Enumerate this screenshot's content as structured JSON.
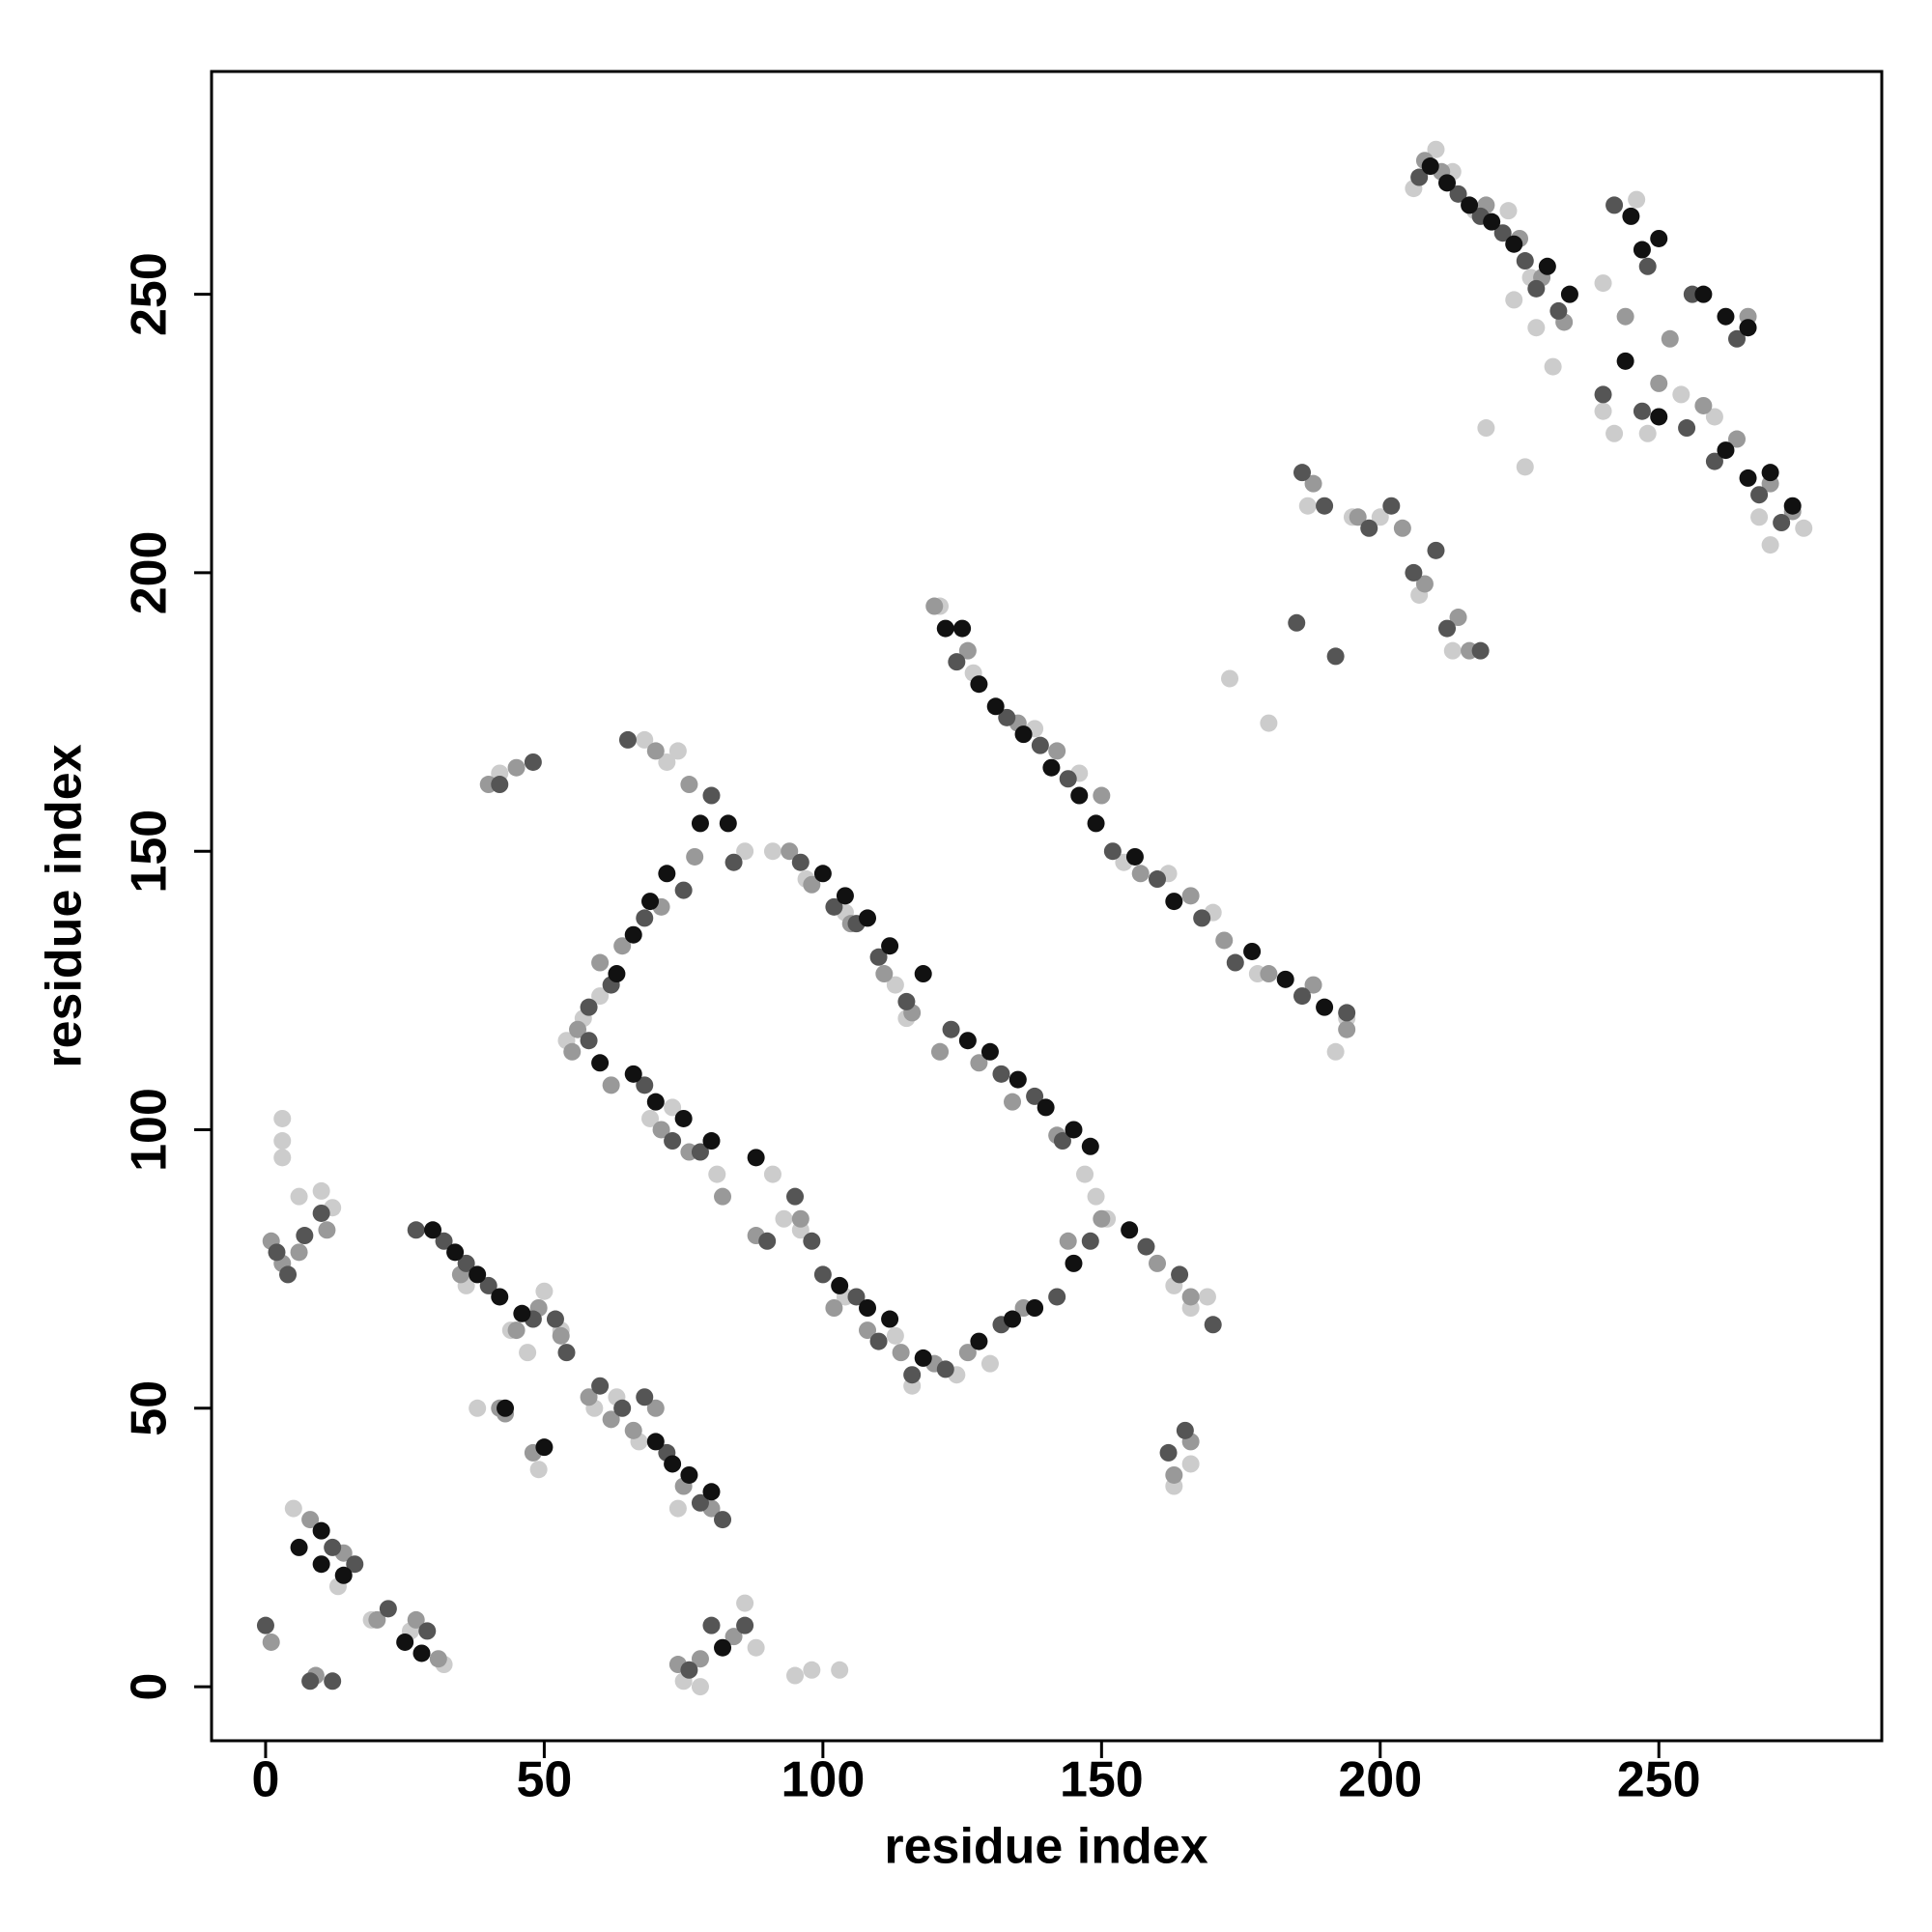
{
  "chart_data": {
    "type": "scatter",
    "xlabel": "residue index",
    "ylabel": "residue index",
    "xlim": [
      -9.7,
      290
    ],
    "ylim": [
      -9.7,
      290
    ],
    "xticks": [
      0,
      50,
      100,
      150,
      200,
      250
    ],
    "yticks": [
      0,
      50,
      100,
      150,
      200,
      250
    ],
    "grid": false,
    "series": [
      {
        "color": "#cccccc",
        "x": [
          206,
          210,
          213,
          217,
          223,
          227,
          231,
          228,
          240,
          242,
          248,
          254,
          260,
          268,
          270,
          276,
          224,
          240,
          246,
          187,
          195,
          200,
          207,
          213,
          219,
          226,
          173,
          180,
          121,
          127,
          138,
          146,
          154,
          162,
          170,
          178,
          192,
          194,
          86,
          91,
          97,
          104,
          113,
          115,
          121,
          147,
          149,
          72,
          68,
          74,
          54,
          57,
          60,
          69,
          73,
          81,
          91,
          93,
          96,
          104,
          113,
          116,
          124,
          130,
          151,
          163,
          166,
          169,
          36,
          44,
          47,
          50,
          53,
          59,
          63,
          67,
          74,
          3,
          3,
          3,
          6,
          10,
          12,
          5,
          13,
          19,
          26,
          32,
          38,
          49,
          75,
          78,
          86,
          88,
          95,
          98,
          103,
          42,
          163,
          166
        ],
        "values": [
          269,
          276,
          272,
          265,
          265,
          253,
          237,
          244,
          229,
          225,
          225,
          232,
          228,
          210,
          205,
          208,
          249,
          252,
          267,
          212,
          210,
          210,
          196,
          186,
          226,
          219,
          181,
          173,
          194,
          182,
          172,
          164,
          148,
          146,
          139,
          128,
          114,
          120,
          150,
          150,
          145,
          139,
          126,
          120,
          114,
          92,
          88,
          166,
          170,
          168,
          116,
          120,
          124,
          102,
          104,
          92,
          92,
          84,
          82,
          70,
          63,
          54,
          56,
          58,
          84,
          72,
          68,
          70,
          72,
          64,
          60,
          71,
          64,
          50,
          52,
          44,
          32,
          98,
          102,
          95,
          88,
          89,
          86,
          32,
          18,
          12,
          10,
          4,
          50,
          39,
          1,
          0,
          15,
          7,
          2,
          3,
          3,
          164,
          36,
          40
        ]
      },
      {
        "color": "#999999",
        "x": [
          208,
          211,
          219,
          225,
          229,
          233,
          244,
          250,
          258,
          264,
          270,
          274,
          252,
          266,
          188,
          196,
          204,
          208,
          214,
          216,
          120,
          126,
          135,
          142,
          150,
          157,
          166,
          172,
          180,
          188,
          194,
          94,
          98,
          105,
          111,
          116,
          121,
          128,
          134,
          142,
          56,
          60,
          64,
          71,
          77,
          70,
          76,
          55,
          62,
          71,
          76,
          82,
          88,
          96,
          102,
          108,
          114,
          120,
          126,
          136,
          144,
          150,
          160,
          166,
          35,
          45,
          49,
          53,
          58,
          62,
          66,
          70,
          75,
          80,
          1,
          3,
          6,
          11,
          8,
          14,
          20,
          27,
          31,
          1,
          9,
          40,
          45,
          163,
          166,
          74,
          78,
          84,
          43,
          48,
          42
        ],
        "values": [
          274,
          272,
          266,
          260,
          253,
          245,
          246,
          234,
          230,
          224,
          216,
          211,
          242,
          246,
          216,
          210,
          208,
          198,
          192,
          186,
          194,
          186,
          173,
          168,
          160,
          146,
          142,
          134,
          128,
          126,
          118,
          150,
          144,
          137,
          128,
          121,
          114,
          112,
          105,
          99,
          118,
          130,
          133,
          140,
          149,
          168,
          162,
          114,
          108,
          100,
          96,
          88,
          81,
          84,
          68,
          64,
          60,
          58,
          60,
          68,
          80,
          84,
          76,
          70,
          74,
          64,
          68,
          63,
          52,
          48,
          46,
          50,
          36,
          32,
          80,
          76,
          78,
          82,
          30,
          24,
          12,
          12,
          5,
          8,
          2,
          162,
          165,
          38,
          44,
          4,
          5,
          9,
          49,
          42,
          50
        ]
      },
      {
        "color": "#555555",
        "x": [
          207,
          214,
          218,
          222,
          226,
          228,
          232,
          242,
          248,
          256,
          264,
          240,
          247,
          255,
          260,
          268,
          272,
          186,
          190,
          198,
          202,
          206,
          210,
          212,
          218,
          185,
          192,
          124,
          133,
          139,
          144,
          152,
          160,
          168,
          174,
          186,
          194,
          96,
          102,
          106,
          110,
          115,
          123,
          132,
          138,
          143,
          58,
          62,
          68,
          75,
          65,
          80,
          84,
          58,
          68,
          73,
          78,
          90,
          95,
          98,
          100,
          106,
          110,
          116,
          122,
          132,
          142,
          148,
          158,
          164,
          170,
          27,
          32,
          36,
          40,
          48,
          52,
          54,
          60,
          64,
          68,
          72,
          78,
          82,
          2,
          4,
          7,
          10,
          12,
          16,
          22,
          29,
          0,
          8,
          12,
          42,
          48,
          162,
          165,
          80,
          76,
          86
        ],
        "values": [
          271,
          268,
          264,
          261,
          256,
          251,
          247,
          266,
          255,
          250,
          242,
          232,
          229,
          226,
          220,
          214,
          209,
          218,
          212,
          208,
          212,
          200,
          204,
          190,
          186,
          191,
          185,
          184,
          174,
          169,
          163,
          150,
          145,
          138,
          130,
          124,
          121,
          148,
          140,
          137,
          131,
          123,
          118,
          110,
          106,
          98,
          122,
          126,
          138,
          143,
          170,
          160,
          148,
          116,
          108,
          98,
          96,
          80,
          88,
          80,
          74,
          70,
          62,
          56,
          57,
          65,
          70,
          80,
          79,
          74,
          65,
          82,
          80,
          76,
          72,
          66,
          66,
          60,
          54,
          50,
          52,
          42,
          33,
          30,
          78,
          74,
          81,
          85,
          25,
          22,
          14,
          10,
          11,
          1,
          1,
          162,
          166,
          42,
          46,
          11,
          3,
          11
        ]
      },
      {
        "color": "#111111",
        "x": [
          209,
          212,
          216,
          220,
          224,
          230,
          234,
          245,
          247,
          250,
          258,
          262,
          266,
          270,
          274,
          244,
          250,
          262,
          266,
          122,
          125,
          128,
          131,
          136,
          141,
          146,
          149,
          156,
          163,
          177,
          183,
          190,
          100,
          104,
          108,
          112,
          118,
          126,
          130,
          135,
          140,
          145,
          148,
          63,
          66,
          69,
          72,
          78,
          83,
          60,
          66,
          70,
          75,
          80,
          103,
          108,
          112,
          118,
          128,
          134,
          138,
          145,
          155,
          30,
          34,
          38,
          42,
          46,
          70,
          73,
          76,
          80,
          6,
          10,
          14,
          25,
          28,
          10,
          43,
          50,
          82,
          88
        ],
        "values": [
          273,
          270,
          266,
          263,
          259,
          255,
          250,
          264,
          258,
          260,
          250,
          246,
          244,
          218,
          212,
          238,
          228,
          222,
          217,
          190,
          190,
          180,
          176,
          171,
          165,
          160,
          155,
          149,
          141,
          132,
          127,
          122,
          146,
          142,
          138,
          133,
          128,
          116,
          114,
          109,
          104,
          100,
          97,
          128,
          135,
          141,
          146,
          155,
          155,
          112,
          110,
          105,
          102,
          98,
          72,
          68,
          66,
          59,
          62,
          66,
          68,
          76,
          82,
          82,
          78,
          74,
          70,
          67,
          44,
          40,
          38,
          35,
          25,
          22,
          20,
          8,
          6,
          28,
          50,
          43,
          7,
          95
        ]
      }
    ]
  }
}
